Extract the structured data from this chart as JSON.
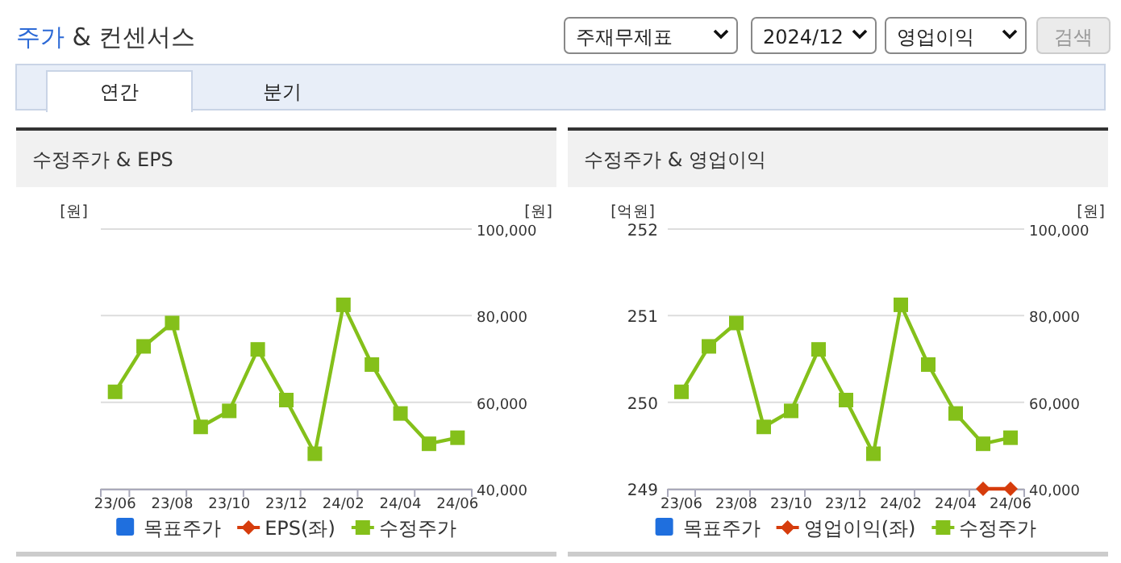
{
  "chart_data": [
    {
      "type": "other",
      "title": "주가 & 컨센서스",
      "annotations": [
        "주재무제표",
        "2024/12",
        "영업이익",
        "검색",
        "연간",
        "분기"
      ]
    },
    {
      "type": "line",
      "title": "수정주가 & EPS",
      "categories": [
        "23/06",
        null,
        "23/08",
        null,
        "23/10",
        null,
        "23/12",
        null,
        "24/02",
        null,
        "24/04",
        null,
        "24/06"
      ],
      "ylabel": "[원]",
      "y2label": "[원]",
      "y2lim": [
        40000,
        100000
      ],
      "y2ticks": [
        {
          "value": 40000,
          "label": "40,000"
        },
        {
          "value": 60000,
          "label": "60,000"
        },
        {
          "value": 80000,
          "label": "80,000"
        },
        {
          "value": 100000,
          "label": "100,000"
        }
      ],
      "grid": "y",
      "legend": "bottom",
      "series": [
        {
          "name": "목표주가",
          "type": "bar",
          "color": "#1f6fde",
          "values": [
            null,
            null,
            null,
            null,
            null,
            null,
            null,
            null,
            null,
            null,
            null,
            null,
            null
          ]
        },
        {
          "name": "EPS(좌)",
          "type": "line",
          "marker": "diamond",
          "color": "#d63c0c",
          "values": [
            null,
            null,
            null,
            null,
            null,
            null,
            null,
            null,
            null,
            null,
            null,
            null,
            null
          ]
        },
        {
          "name": "수정주가",
          "type": "line",
          "marker": "square",
          "color": "#84c01a",
          "axis": "y2",
          "values": [
            62400,
            72900,
            78300,
            54300,
            58000,
            72200,
            60500,
            48100,
            82500,
            68700,
            57400,
            50400,
            51800
          ]
        }
      ]
    },
    {
      "type": "line",
      "title": "수정주가 & 영업이익",
      "categories": [
        "23/06",
        null,
        "23/08",
        null,
        "23/10",
        null,
        "23/12",
        null,
        "24/02",
        null,
        "24/04",
        null,
        "24/06"
      ],
      "ylabel": "[억원]",
      "y2label": "[원]",
      "ylim": [
        249,
        252
      ],
      "yticks": [
        249,
        250,
        251,
        252
      ],
      "y2lim": [
        40000,
        100000
      ],
      "y2ticks": [
        {
          "value": 40000,
          "label": "40,000"
        },
        {
          "value": 60000,
          "label": "60,000"
        },
        {
          "value": 80000,
          "label": "80,000"
        },
        {
          "value": 100000,
          "label": "100,000"
        }
      ],
      "grid": "y",
      "legend": "bottom",
      "series": [
        {
          "name": "목표주가",
          "type": "bar",
          "color": "#1f6fde",
          "values": [
            null,
            null,
            null,
            null,
            null,
            null,
            null,
            null,
            null,
            null,
            null,
            null,
            null
          ]
        },
        {
          "name": "영업이익(좌)",
          "type": "line",
          "marker": "diamond",
          "color": "#d63c0c",
          "values": [
            null,
            null,
            null,
            null,
            null,
            null,
            null,
            null,
            null,
            null,
            null,
            249,
            249
          ]
        },
        {
          "name": "수정주가",
          "type": "line",
          "marker": "square",
          "color": "#84c01a",
          "axis": "y2",
          "values": [
            62400,
            72900,
            78300,
            54300,
            58000,
            72200,
            60500,
            48100,
            82500,
            68700,
            57400,
            50400,
            51800
          ]
        }
      ]
    }
  ]
}
